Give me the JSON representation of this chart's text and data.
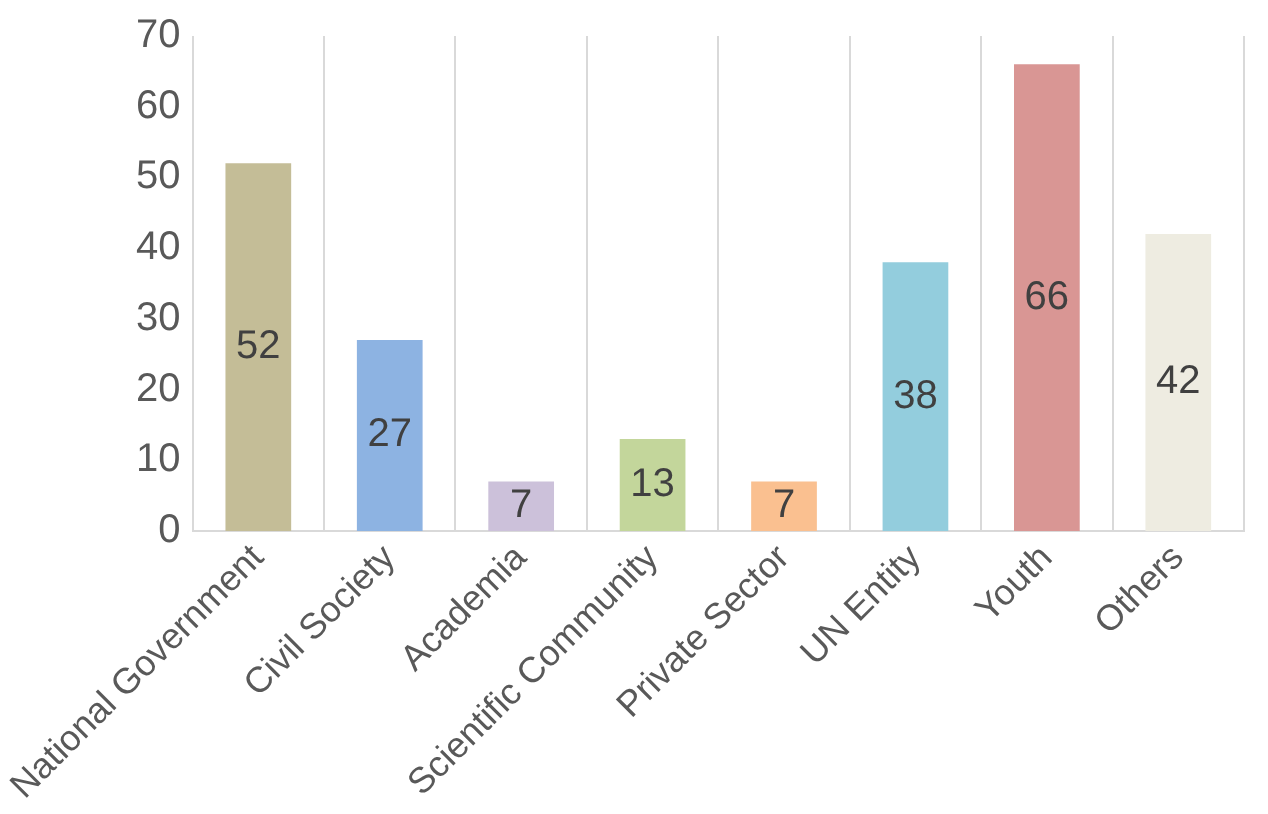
{
  "chart_data": {
    "type": "bar",
    "categories": [
      "National Government",
      "Civil Society",
      "Academia",
      "Scientific Community",
      "Private Sector",
      "UN Entity",
      "Youth",
      "Others"
    ],
    "values": [
      52,
      27,
      7,
      13,
      7,
      38,
      66,
      42
    ],
    "colors": [
      "#c4bd97",
      "#8db3e2",
      "#ccc1da",
      "#c3d69b",
      "#fac090",
      "#93cddd",
      "#d99694",
      "#eeece1"
    ],
    "ylim": [
      0,
      70
    ],
    "yticks": [
      0,
      10,
      20,
      30,
      40,
      50,
      60,
      70
    ],
    "grid": "x",
    "data_labels": true,
    "legend": false
  }
}
